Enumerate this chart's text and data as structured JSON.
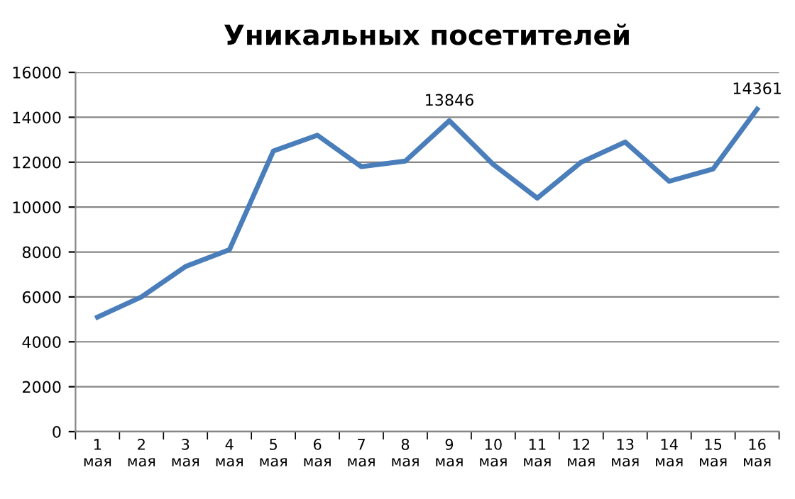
{
  "chart_data": {
    "type": "line",
    "title": "Уникальных посетителей",
    "categories": [
      "1\nмая",
      "2\nмая",
      "3\nмая",
      "4\nмая",
      "5\nмая",
      "6\nмая",
      "7\nмая",
      "8\nмая",
      "9\nмая",
      "10\nмая",
      "11\nмая",
      "12\nмая",
      "13\nмая",
      "14\nмая",
      "15\nмая",
      "16\nмая"
    ],
    "series": [
      {
        "color": "#4a7ebb",
        "values": [
          5100,
          6000,
          7350,
          8100,
          12500,
          13200,
          11800,
          12050,
          13846,
          11900,
          10400,
          12000,
          12900,
          11150,
          11700,
          14361
        ],
        "value_labels": [
          null,
          null,
          null,
          null,
          null,
          null,
          null,
          null,
          "13846",
          null,
          null,
          null,
          null,
          null,
          null,
          "14361"
        ]
      }
    ],
    "ylim": [
      0,
      16000
    ],
    "yticks": [
      0,
      2000,
      4000,
      6000,
      8000,
      10000,
      12000,
      14000,
      16000
    ],
    "grid": "y",
    "legend": false,
    "marker": "none",
    "line_style": "solid"
  }
}
